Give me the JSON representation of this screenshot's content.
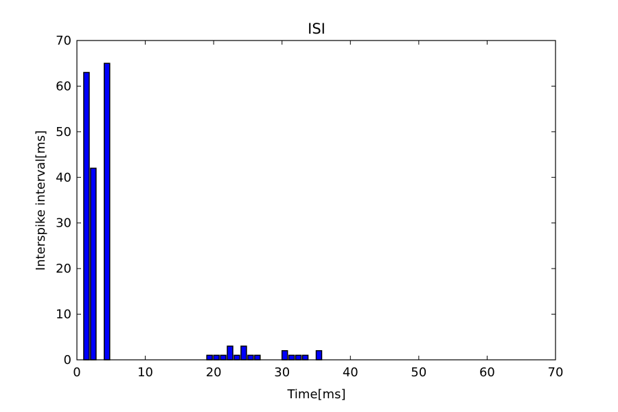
{
  "chart_data": {
    "type": "bar",
    "title": "ISI",
    "xlabel": "Time[ms]",
    "ylabel": "Interspike interval[ms]",
    "xlim": [
      0,
      70
    ],
    "ylim": [
      0,
      70
    ],
    "x_ticks": [
      "0",
      "10",
      "20",
      "30",
      "40",
      "50",
      "60",
      "70"
    ],
    "y_ticks": [
      "0",
      "10",
      "20",
      "30",
      "40",
      "50",
      "60",
      "70"
    ],
    "grid": false,
    "bar_width": 0.8,
    "bar_color": "#0000ff",
    "bars": [
      {
        "x": 1,
        "value": 63
      },
      {
        "x": 2,
        "value": 42
      },
      {
        "x": 4,
        "value": 65
      },
      {
        "x": 19,
        "value": 1
      },
      {
        "x": 20,
        "value": 1
      },
      {
        "x": 21,
        "value": 1
      },
      {
        "x": 22,
        "value": 3
      },
      {
        "x": 23,
        "value": 1
      },
      {
        "x": 24,
        "value": 3
      },
      {
        "x": 25,
        "value": 1
      },
      {
        "x": 26,
        "value": 1
      },
      {
        "x": 30,
        "value": 2
      },
      {
        "x": 31,
        "value": 1
      },
      {
        "x": 32,
        "value": 1
      },
      {
        "x": 33,
        "value": 1
      },
      {
        "x": 35,
        "value": 2
      }
    ]
  }
}
